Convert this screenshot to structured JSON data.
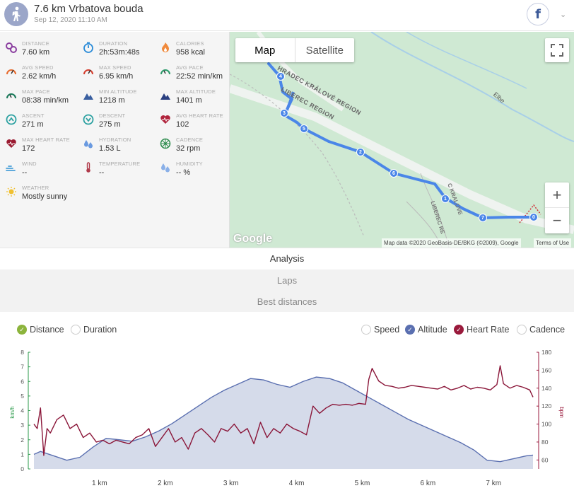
{
  "header": {
    "title": "7.6 km Vrbatova bouda",
    "date": "Sep 12, 2020 11:10 AM",
    "facebook": "f",
    "caret": "⌄"
  },
  "stats": [
    {
      "label": "DISTANCE",
      "value": "7.60 km",
      "icon": "map-pin-icon",
      "color": "#8b3fa0"
    },
    {
      "label": "DURATION",
      "value": "2h:53m:48s",
      "icon": "stopwatch-icon",
      "color": "#2a8bd8"
    },
    {
      "label": "CALORIES",
      "value": "958 kcal",
      "icon": "flame-icon",
      "color": "#f08a3c"
    },
    {
      "label": "AVG SPEED",
      "value": "2.62 km/h",
      "icon": "speedometer-icon",
      "color": "#e86a2c"
    },
    {
      "label": "MAX SPEED",
      "value": "6.95 km/h",
      "icon": "speedometer-icon",
      "color": "#d43c2c"
    },
    {
      "label": "AVG PACE",
      "value": "22:52 min/km",
      "icon": "pace-gauge-icon",
      "color": "#2a9a6a"
    },
    {
      "label": "MAX PACE",
      "value": "08:38 min/km",
      "icon": "pace-gauge-icon",
      "color": "#1a7a5a"
    },
    {
      "label": "MIN ALTITUDE",
      "value": "1218 m",
      "icon": "mountain-icon",
      "color": "#3a5fa0"
    },
    {
      "label": "MAX ALTITUDE",
      "value": "1401 m",
      "icon": "mountain-icon",
      "color": "#2a3f80"
    },
    {
      "label": "ASCENT",
      "value": "271 m",
      "icon": "ascent-icon",
      "color": "#2aa0a0"
    },
    {
      "label": "DESCENT",
      "value": "275 m",
      "icon": "descent-icon",
      "color": "#2aa0a0"
    },
    {
      "label": "AVG HEART RATE",
      "value": "102",
      "icon": "heart-rate-icon",
      "color": "#b0243c"
    },
    {
      "label": "MAX HEART RATE",
      "value": "172",
      "icon": "heart-rate-icon",
      "color": "#9a1a30"
    },
    {
      "label": "HYDRATION",
      "value": "1.53 L",
      "icon": "water-drops-icon",
      "color": "#6a9ae0"
    },
    {
      "label": "CADENCE",
      "value": "32 rpm",
      "icon": "cadence-wheel-icon",
      "color": "#2a8a4a"
    },
    {
      "label": "WIND",
      "value": "--",
      "icon": "wind-icon",
      "color": "#4aa0d8"
    },
    {
      "label": "TEMPERATURE",
      "value": "--",
      "icon": "thermometer-icon",
      "color": "#b03a4a"
    },
    {
      "label": "HUMIDITY",
      "value": "-- %",
      "icon": "humidity-drops-icon",
      "color": "#8ab0e8"
    },
    {
      "label": "WEATHER",
      "value": "Mostly sunny",
      "icon": "sun-icon",
      "color": "#f0c030"
    }
  ],
  "map": {
    "tab_map": "Map",
    "tab_satellite": "Satellite",
    "zoom_in": "+",
    "zoom_out": "−",
    "logo": "Google",
    "attribution": "Map data ©2020 GeoBasis-DE/BKG (©2009), Google",
    "terms": "Terms of Use",
    "labels": [
      "HRADEC KRÁLOVÉ REGION",
      "LIBEREC REGION",
      "Elbe",
      "LIBEREC RE",
      "C KRALOVE"
    ],
    "markers": [
      "4",
      "3",
      "5",
      "2",
      "6",
      "1",
      "7",
      "0"
    ],
    "route_color": "#4a86e8"
  },
  "tabs": {
    "analysis": "Analysis",
    "laps": "Laps",
    "best": "Best distances"
  },
  "options": {
    "left": [
      {
        "label": "Distance",
        "checked": true,
        "color": "#8cb43c"
      },
      {
        "label": "Duration",
        "checked": false
      }
    ],
    "right": [
      {
        "label": "Speed",
        "checked": false
      },
      {
        "label": "Altitude",
        "checked": true,
        "color": "#5a6fb0"
      },
      {
        "label": "Heart Rate",
        "checked": true,
        "color": "#9a1a3c"
      },
      {
        "label": "Cadence",
        "checked": false
      }
    ]
  },
  "chart_data": {
    "type": "line",
    "x_unit": "km",
    "x_ticks": [
      "1 km",
      "2 km",
      "3 km",
      "4 km",
      "5 km",
      "6 km",
      "7 km"
    ],
    "x_range": [
      0,
      7.6
    ],
    "left_axis": {
      "label": "km/h",
      "ticks": [
        0,
        1,
        2,
        3,
        4,
        5,
        6,
        7,
        8
      ],
      "range": [
        0,
        8
      ],
      "color": "#2a9a4a"
    },
    "right_axis": {
      "label": "bpm",
      "ticks": [
        60,
        80,
        100,
        120,
        140,
        160,
        180
      ],
      "range": [
        50,
        180
      ],
      "color": "#9a1a3c"
    },
    "series": [
      {
        "name": "Altitude",
        "style": "area",
        "color": "#5a6fb0",
        "fill": "#d5dbea",
        "x": [
          0,
          0.1,
          0.3,
          0.5,
          0.7,
          0.9,
          1.1,
          1.3,
          1.5,
          1.7,
          1.9,
          2.1,
          2.3,
          2.5,
          2.7,
          2.9,
          3.1,
          3.3,
          3.5,
          3.7,
          3.9,
          4.1,
          4.3,
          4.5,
          4.7,
          4.9,
          5.1,
          5.3,
          5.5,
          5.7,
          5.9,
          6.1,
          6.3,
          6.5,
          6.7,
          6.9,
          7.1,
          7.3,
          7.5,
          7.6
        ],
        "left_values": [
          1.0,
          1.2,
          0.9,
          0.6,
          0.8,
          1.5,
          2.1,
          2.0,
          1.9,
          2.2,
          2.6,
          3.1,
          3.7,
          4.3,
          4.9,
          5.4,
          5.8,
          6.2,
          6.1,
          5.8,
          5.6,
          6.0,
          6.3,
          6.2,
          5.9,
          5.4,
          4.9,
          4.4,
          3.9,
          3.4,
          3.0,
          2.6,
          2.2,
          1.8,
          1.3,
          0.6,
          0.5,
          0.7,
          0.9,
          0.95
        ]
      },
      {
        "name": "Heart Rate",
        "style": "line",
        "color": "#8a1538",
        "x": [
          0,
          0.05,
          0.1,
          0.15,
          0.2,
          0.25,
          0.35,
          0.45,
          0.55,
          0.65,
          0.75,
          0.85,
          0.95,
          1.05,
          1.15,
          1.25,
          1.35,
          1.45,
          1.55,
          1.65,
          1.75,
          1.85,
          1.95,
          2.05,
          2.15,
          2.25,
          2.35,
          2.45,
          2.55,
          2.65,
          2.75,
          2.85,
          2.95,
          3.05,
          3.15,
          3.25,
          3.35,
          3.45,
          3.55,
          3.65,
          3.75,
          3.85,
          3.95,
          4.05,
          4.15,
          4.25,
          4.35,
          4.45,
          4.55,
          4.65,
          4.75,
          4.85,
          4.95,
          5.05,
          5.1,
          5.15,
          5.25,
          5.35,
          5.45,
          5.55,
          5.65,
          5.75,
          5.85,
          5.95,
          6.05,
          6.15,
          6.25,
          6.35,
          6.45,
          6.55,
          6.65,
          6.75,
          6.85,
          6.95,
          7.05,
          7.1,
          7.15,
          7.25,
          7.35,
          7.45,
          7.55,
          7.6
        ],
        "values": [
          100,
          95,
          118,
          65,
          95,
          90,
          105,
          110,
          95,
          100,
          85,
          90,
          80,
          82,
          78,
          82,
          80,
          78,
          85,
          88,
          95,
          75,
          85,
          95,
          80,
          85,
          72,
          90,
          95,
          88,
          80,
          95,
          92,
          100,
          90,
          95,
          78,
          102,
          85,
          95,
          90,
          100,
          95,
          92,
          88,
          120,
          112,
          118,
          122,
          121,
          122,
          121,
          123,
          122,
          150,
          162,
          148,
          143,
          142,
          140,
          141,
          143,
          142,
          141,
          140,
          139,
          142,
          138,
          140,
          143,
          139,
          141,
          140,
          138,
          144,
          165,
          145,
          140,
          143,
          141,
          138,
          130
        ]
      }
    ]
  }
}
